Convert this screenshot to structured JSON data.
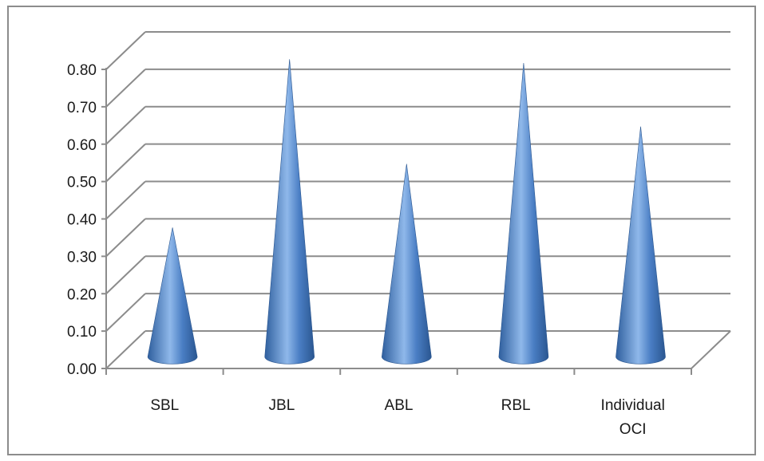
{
  "chart_data": {
    "type": "bar",
    "bar_shape": "3d-cone",
    "categories": [
      "SBL",
      "JBL",
      "ABL",
      "RBL",
      "Individual OCI"
    ],
    "category_label_lines": [
      [
        "SBL"
      ],
      [
        "JBL"
      ],
      [
        "ABL"
      ],
      [
        "RBL"
      ],
      [
        "Individual",
        "OCI"
      ]
    ],
    "values": [
      0.35,
      0.8,
      0.52,
      0.79,
      0.62
    ],
    "ylim": [
      0,
      0.8
    ],
    "yticks": [
      "0.00",
      "0.10",
      "0.20",
      "0.30",
      "0.40",
      "0.50",
      "0.60",
      "0.70",
      "0.80"
    ],
    "title": "",
    "xlabel": "",
    "ylabel": "",
    "grid": true,
    "legend": "none",
    "colors": {
      "cone_dark": "#2f5f9e",
      "cone_mid": "#4a7ec4",
      "cone_light": "#8fb8ea",
      "grid": "#8c8c8c",
      "border": "#8c8c8c"
    }
  }
}
